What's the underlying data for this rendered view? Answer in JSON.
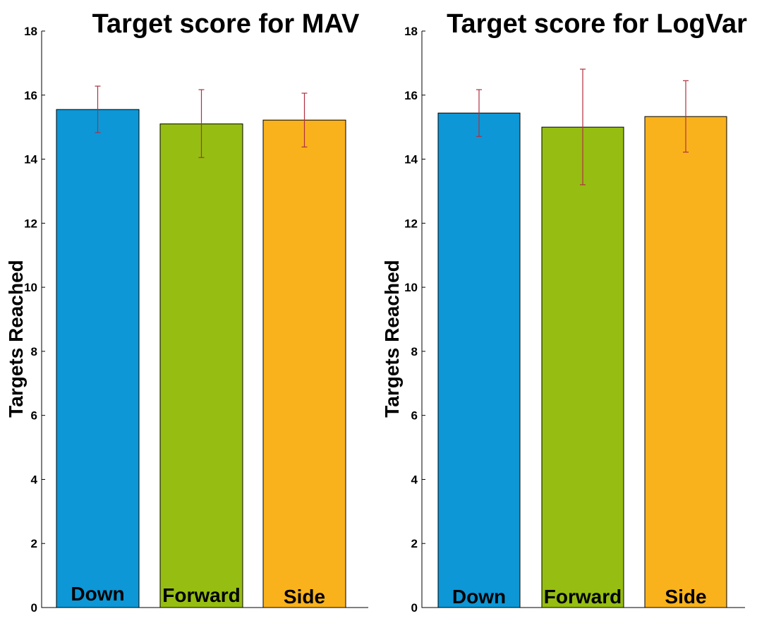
{
  "chart_data": [
    {
      "type": "bar",
      "title": "Target score for MAV",
      "ylabel": "Targets Reached",
      "xlabel": "",
      "ylim": [
        0,
        18
      ],
      "yticks": [
        0,
        2,
        4,
        6,
        8,
        10,
        12,
        14,
        16,
        18
      ],
      "categories": [
        "Down",
        "Forward",
        "Side"
      ],
      "values": [
        15.55,
        15.1,
        15.22
      ],
      "error_low": [
        14.83,
        14.05,
        14.38
      ],
      "error_high": [
        16.28,
        16.17,
        16.06
      ],
      "colors": [
        "#0d97d6",
        "#96be12",
        "#f9b21b"
      ],
      "error_color": "#b03040",
      "grid": false
    },
    {
      "type": "bar",
      "title": "Target score for LogVar",
      "ylabel": "Targets Reached",
      "xlabel": "",
      "ylim": [
        0,
        18
      ],
      "yticks": [
        0,
        2,
        4,
        6,
        8,
        10,
        12,
        14,
        16,
        18
      ],
      "categories": [
        "Down",
        "Forward",
        "Side"
      ],
      "values": [
        15.44,
        15.0,
        15.33
      ],
      "error_low": [
        14.71,
        13.2,
        14.22
      ],
      "error_high": [
        16.17,
        16.81,
        16.45
      ],
      "colors": [
        "#0d97d6",
        "#96be12",
        "#f9b21b"
      ],
      "error_color": "#b03040",
      "grid": false
    }
  ]
}
